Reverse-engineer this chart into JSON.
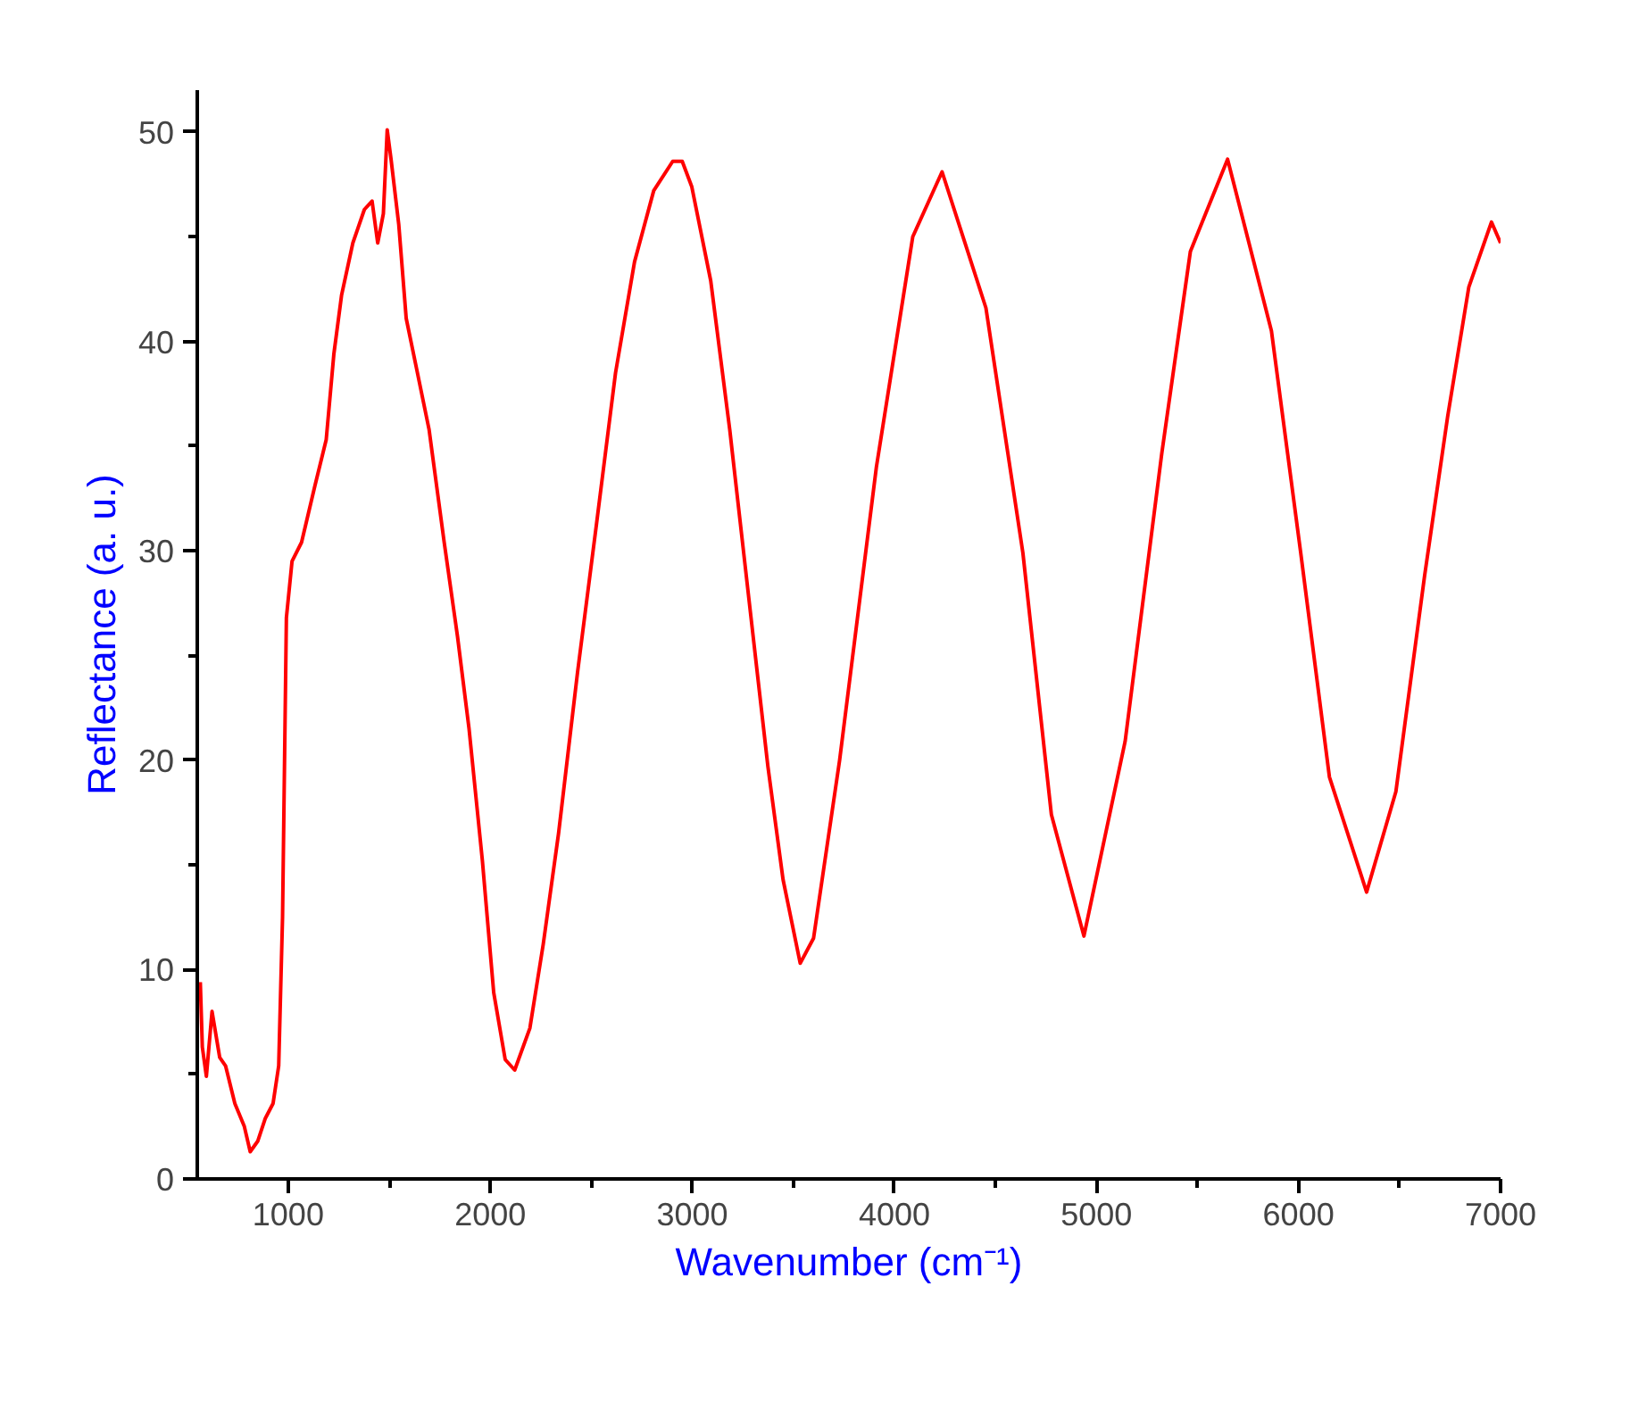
{
  "chart_data": {
    "type": "line",
    "xlabel": "Wavenumber (cm⁻¹)",
    "ylabel": "Reflectance (a. u.)",
    "xlim": [
      550,
      7000
    ],
    "ylim": [
      0,
      52
    ],
    "xticks": [
      1000,
      {
        "value": 1500,
        "label": null
      },
      2000,
      {
        "value": 2500,
        "label": null
      },
      3000,
      {
        "value": 3500,
        "label": null
      },
      4000,
      {
        "value": 4500,
        "label": null
      },
      5000,
      {
        "value": 5500,
        "label": null
      },
      6000,
      {
        "value": 6500,
        "label": null
      },
      7000
    ],
    "yticks": [
      0,
      {
        "value": 5,
        "label": null
      },
      10,
      {
        "value": 15,
        "label": null
      },
      20,
      {
        "value": 25,
        "label": null
      },
      30,
      {
        "value": 35,
        "label": null
      },
      40,
      {
        "value": 45,
        "label": null
      },
      50
    ],
    "grid": false,
    "marker": "none",
    "line_style": "solid",
    "series": [
      {
        "color": "#ff0000",
        "x": [
          565,
          575,
          595,
          623,
          661,
          690,
          736,
          783,
          812,
          849,
          887,
          925,
          953,
          972,
          991,
          1019,
          1066,
          1132,
          1188,
          1226,
          1264,
          1320,
          1377,
          1415,
          1443,
          1471,
          1490,
          1509,
          1547,
          1584,
          1631,
          1697,
          1772,
          1838,
          1895,
          1961,
          2017,
          2074,
          2121,
          2196,
          2262,
          2338,
          2432,
          2526,
          2620,
          2714,
          2809,
          2903,
          2950,
          2997,
          3091,
          3185,
          3280,
          3374,
          3449,
          3534,
          3600,
          3729,
          3911,
          4091,
          4236,
          4453,
          4636,
          4777,
          4938,
          5142,
          5324,
          5465,
          5649,
          5866,
          6011,
          6153,
          6337,
          6482,
          6624,
          6738,
          6843,
          6955,
          7000
        ],
        "values": [
          9.4,
          6.3,
          4.9,
          8.0,
          5.8,
          5.4,
          3.6,
          2.5,
          1.3,
          1.8,
          2.9,
          3.6,
          5.4,
          12.5,
          26.8,
          29.5,
          30.4,
          33.1,
          35.3,
          39.4,
          42.2,
          44.7,
          46.3,
          46.7,
          44.7,
          46.1,
          50.1,
          48.7,
          45.6,
          41.1,
          38.9,
          35.8,
          30.4,
          25.9,
          21.5,
          15.2,
          8.9,
          5.7,
          5.2,
          7.2,
          11.2,
          16.5,
          24.2,
          31.3,
          38.5,
          43.8,
          47.2,
          48.6,
          48.6,
          47.4,
          42.9,
          35.8,
          27.7,
          19.7,
          14.3,
          10.3,
          11.5,
          20.0,
          34.0,
          45.0,
          48.1,
          41.6,
          29.9,
          17.4,
          11.6,
          20.9,
          34.7,
          44.3,
          48.7,
          40.5,
          29.9,
          19.2,
          13.7,
          18.5,
          28.8,
          36.4,
          42.6,
          45.7,
          44.7
        ]
      }
    ]
  }
}
